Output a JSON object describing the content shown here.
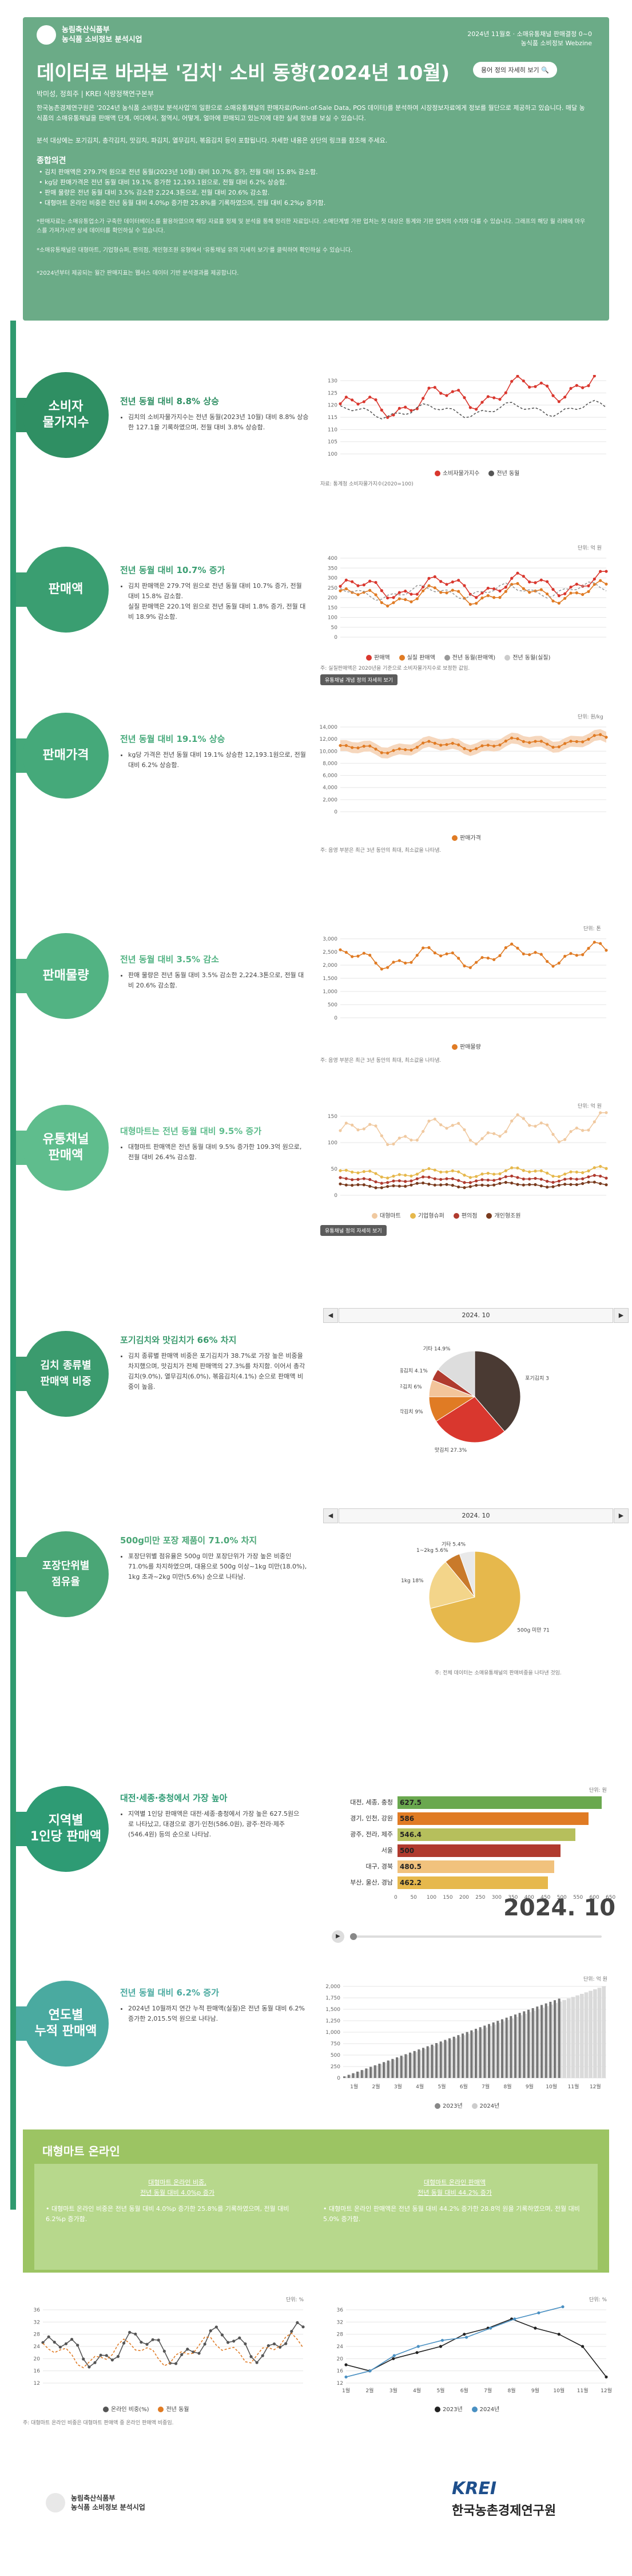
{
  "header": {
    "logo_line1": "농림축산식품부",
    "logo_line2": "농식품 소비정보 분석시업",
    "meta_line1": "2024년 11월호 · 소매유통채널 판매결정 0~0",
    "meta_line2": "농식품 소비정보 Webzine",
    "title": "데이터로 바라본 '김치' 소비 동향(2024년 10월)",
    "title_button": "용어 정의 자세히 보기",
    "author": "박미성, 정희주 | KREI 식량정책연구본부",
    "intro": "한국농촌경제연구원은 '2024년 농식품 소비정보 분석사업'의 일환으로 소매유통채널의 판매자료(Point-of-Sale Data, POS 데이터)를 분석하여 시장정보자료에게 정보를 월단으로 제공하고 있습니다. 매달 농식품의 소매유통채널을 판매액 단계, 여다에서, 절역시, 어떻게, 얼마에 판매되고 있는지에 대한 실세 정보를 보실 수 있습니다.",
    "intro2": "분석 대상에는 포기김치, 총각김치, 맛김치, 파김치, 열무김치, 볶음김치 등이 포함됩니다. 자세한 내용은 상단의 링크를 참조해 주세요.",
    "summary_title": "종합의견",
    "summary": [
      "• 김치 판매액은 279.7억 원으로 전년 동월(2023년 10월) 대비 10.7% 증가, 전월 대비 15.8% 감소함.",
      "• kg당 판매가격은 전년 동월 대비 19.1% 증가한 12,193.1원으로, 전월 대비 6.2% 상승함.",
      "• 판매 물량은 전년 동월 대비 3.5% 감소한 2,224.3톤으로, 전월 대비 20.6% 감소함.",
      "• 대형마트 온라인 비중은 전년 동월 대비 4.0%p 증가한 25.8%를 기록하였으며, 전월 대비 6.2%p 증가함."
    ],
    "note1": "*판매자료는 소매유통업소가 구축한 데이터베이스를 활용하였으며 해당 자료를 정제 및 분석을 통해 정리한 자료입니다. 소매단계별 가판 업처는 첫 대상은 통계와 기판 업처의 수치와 다를 수 있습니다. 그래프의 해당 월 리래에 마우스를 가져가시면 상세 데이터를 확인하실 수 있습니다.",
    "note2": "*소매유통채널은 대형마트, 기업형슈퍼, 편의점, 개인형조원 유형에서 '유통채널 유의 지세히 보기'를 클릭하여 확인하실 수 있습니다.",
    "note3": "*2024년부터 제공되는 월간 판매지표는 웹사스 데이터 기반 분석결과를 제공합니다."
  },
  "sections": [
    {
      "circle": "소비자\n물가지수",
      "color": "#2f8f63",
      "title": "전년 동월 대비 8.8% 상승",
      "body": "김치의 소비자물가지수는 전년 동월(2023년 10월) 대비 8.8% 상승한 127.1을 기록하였으며, 전월 대비 3.8% 상승함."
    },
    {
      "circle": "판매액",
      "color": "#3a9e71",
      "title": "전년 동월 대비 10.7% 증가",
      "body": "김치 판매액은 279.7억 원으로 전년 동월 대비 10.7% 증가, 전월 대비 15.8% 감소함.\n실질 판매액은 220.1억 원으로 전년 동월 대비 1.8% 증가, 전월 대비 18.9% 감소함."
    },
    {
      "circle": "판매가격",
      "color": "#45a97a",
      "title": "전년 동월 대비 19.1% 상승",
      "body": "kg당 가격은 전년 동월 대비 19.1% 상승한 12,193.1원으로, 전월 대비 6.2% 상승함."
    },
    {
      "circle": "판매물량",
      "color": "#52b383",
      "title": "전년 동월 대비 3.5% 감소",
      "body": "판매 물량은 전년 동월 대비 3.5% 감소한 2,224.3톤으로, 전월 대비 20.6% 감소함."
    },
    {
      "circle": "유통채널\n판매액",
      "color": "#5fbd8d",
      "title": "대형마트는 전년 동월 대비 9.5% 증가",
      "body": "대형마트 판매액은 전년 동월 대비 9.5% 증가한 109.3억 원으로, 전월 대비 26.4% 감소함."
    },
    {
      "circle": "김치 종류별\n판매액 비중",
      "color": "#3b9b6e",
      "title": "포기김치와 맛김치가 66% 차지",
      "body": "김치 종류별 판매액 비중은 포기김치가 38.7%로 가장 높은 비중을 차지했으며, 맛김치가 전체 판매액의 27.3%를 차지함. 이어서 총각김치(9.0%), 열무김치(6.0%), 볶음김치(4.1%) 순으로 판매액 비중이 높음."
    },
    {
      "circle": "포장단위별\n점유율",
      "color": "#4aa676",
      "title": "500g미만 포장 제품이 71.0% 차지",
      "body": "포장단위별 점유율은 500g 미만 포장단위가 가장 높은 비중인 71.0%를 차지하였으며, 대용으로 500g 이상~1kg 미만(18.0%), 1kg 초과~2kg 미만(5.6%) 순으로 나타남."
    },
    {
      "circle": "지역별\n1인당 판매액",
      "color": "#2e9b74",
      "title": "대전·세종·충청에서 가장 높아",
      "body": "지역별 1인당 판매액은 대전·세종·충청에서 가장 높은 627.5원으로 나타났고, 대경으로 경기·인천(586.0원), 광주·전라·제주(546.4원) 등의 순으로 나타남."
    },
    {
      "circle": "연도별\n누적 판매액",
      "color": "#4aaaa0",
      "title": "전년 동월 대비 6.2% 증가",
      "body": "2024년 10월까지 연간 누적 판매액(실질)은 전년 동월 대비 6.2% 증가한 2,015.5억 원으로 나타남."
    }
  ],
  "charts": {
    "cpi": {
      "unit": "",
      "legend": [
        "소비자물가지수",
        "전년 동월"
      ],
      "source": "자료: 통계청 소비자물가지수(2020=100)",
      "yticks": [
        "100",
        "105",
        "110",
        "115",
        "120",
        "125",
        "130"
      ]
    },
    "sales": {
      "unit": "단위: 억 원",
      "legend": [
        "판매액",
        "실질 판매액",
        "전년 동월(판매액)",
        "전년 동월(실질)"
      ],
      "button": "유통채널 개념 정의 자세히 보기",
      "source": "주: 실질판매액은 2020년을 기준으로 소비자물가지수로 보정한 값임.",
      "yticks": [
        "0",
        "50",
        "100",
        "150",
        "200",
        "250",
        "300",
        "350",
        "400"
      ]
    },
    "price": {
      "unit": "단위: 원/kg",
      "legend": [
        "판매가격"
      ],
      "source": "주: 음영 부분은 최근 3년 동안의 최대, 최소값을 나타냄.",
      "yticks": [
        "0",
        "2,000",
        "4,000",
        "6,000",
        "8,000",
        "10,000",
        "12,000",
        "14,000"
      ]
    },
    "volume": {
      "unit": "단위: 톤",
      "legend": [
        "판매물량"
      ],
      "source": "주: 음영 부분은 최근 3년 동안의 최대, 최소값을 나타냄.",
      "yticks": [
        "0",
        "500",
        "1,000",
        "1,500",
        "2,000",
        "2,500",
        "3,000"
      ]
    },
    "channel": {
      "unit": "단위: 억 원",
      "legend": [
        "대형마트",
        "기업형슈퍼",
        "편의점",
        "개인형조원"
      ],
      "button": "유통채널 정의 자세히 보기",
      "yticks": [
        "0",
        "50",
        "100",
        "150"
      ]
    },
    "kind": {
      "month_label": "2024. 10"
    },
    "pack": {
      "month_label": "2024. 10",
      "source": "주: 전체 데이터는 소매유통채널의 판매비중을 나타낸 것임."
    },
    "region": {
      "unit": "단위: 원",
      "month": "2024. 10",
      "xticks": [
        "0",
        "50",
        "100",
        "150",
        "200",
        "250",
        "300",
        "350",
        "400",
        "450",
        "500",
        "550",
        "600",
        "650"
      ]
    },
    "cumulative": {
      "unit": "단위: 억 원",
      "legend": [
        "2023년",
        "2024년"
      ],
      "yticks": [
        "0",
        "250",
        "500",
        "750",
        "1,000",
        "1,250",
        "1,500",
        "1,750",
        "2,000"
      ],
      "months": [
        "1월",
        "2월",
        "3월",
        "4월",
        "5월",
        "6월",
        "7월",
        "8월",
        "9월",
        "10월",
        "11월",
        "12월"
      ]
    },
    "online_left": {
      "unit": "단위: %",
      "legend": [
        "온라인 비중(%)",
        "전년 동월"
      ],
      "source": "주: 대형마트 온라인 비중은 대형마트 판매액 중 온라인 판매액 비중임."
    },
    "online_right": {
      "unit": "단위: %",
      "legend": [
        "2023년",
        "2024년"
      ],
      "months": [
        "1월",
        "2월",
        "3월",
        "4월",
        "5월",
        "6월",
        "7월",
        "8월",
        "9월",
        "10월",
        "11월",
        "12월"
      ]
    }
  },
  "chart_data": [
    {
      "type": "bar",
      "title": "",
      "categories": [
        "대전, 세종, 충청",
        "경기, 인천, 강원",
        "광주, 전라, 제주",
        "서울",
        "대구, 경북",
        "부산, 울산, 경남"
      ],
      "values": [
        627.5,
        586.0,
        546.4,
        500,
        480.5,
        462.2
      ],
      "xlim": [
        0,
        650
      ]
    },
    {
      "type": "pie",
      "title": "",
      "categories": [
        "포기김치",
        "맛김치",
        "총각김치",
        "열무김치",
        "볶음김치",
        "기타"
      ],
      "values": [
        38.7,
        27.3,
        9.0,
        6.0,
        4.1,
        14.9
      ]
    },
    {
      "type": "pie",
      "title": "",
      "categories": [
        "500g 미만",
        "500g~1kg",
        "1~2kg",
        "기타"
      ],
      "values": [
        71.0,
        18.0,
        5.6,
        5.4
      ]
    }
  ],
  "region_labels": [
    "627.5",
    "586",
    "546.4",
    "500",
    "480.5",
    "462.2"
  ],
  "region_big": "2024. 10",
  "online": {
    "title": "대형마트 온라인",
    "left_head1": "대형마트 온라인 비중,",
    "left_head2": "전년 동월 대비 4.0%p 증가",
    "left_body": "• 대형마트 온라인 비중은 전년 동월 대비 4.0%p 증가한 25.8%를 기록하였으며, 전월 대비 6.2%p 증가함.",
    "right_head1": "대형마트 온라인 판매액",
    "right_head2": "전년 동월 대비 44.2% 증가",
    "right_body": "• 대형마트 온라인 판매액은 전년 동월 대비 44.2% 증가한 28.8억 원을 기록하였으며, 전월 대비 5.0% 증가함."
  },
  "footer": {
    "logo_left1": "농림축산식품부",
    "logo_left2": "농식품 소비정보 분석시업",
    "krei": "KREI",
    "krei_name": "한국농촌경제연구원"
  },
  "colors": {
    "primary": "#2f9a6f",
    "orange": "#e07b24",
    "brown": "#7a3b1e",
    "gold": "#e6b84c",
    "green_bar": "#6aa84f"
  }
}
